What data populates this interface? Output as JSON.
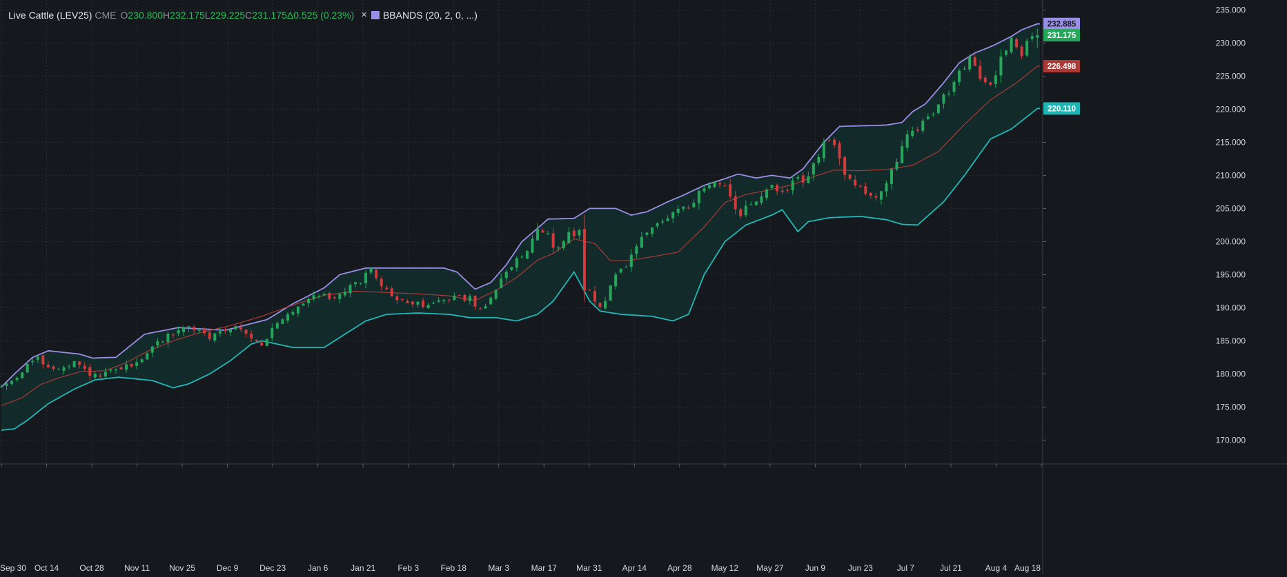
{
  "legend": {
    "symbol": "Live Cattle (LEV25)",
    "exchange": "CME",
    "o_label": "O",
    "o_value": "230.800",
    "h_label": "H",
    "h_value": "232.175",
    "l_label": "L",
    "l_value": "229.225",
    "c_label": "C",
    "c_value": "231.175",
    "change": "Δ0.525 (0.23%)",
    "close_icon": "×",
    "indicator": "BBANDS (20, 2, 0, ...)",
    "indicator_color": "#9b8ee6"
  },
  "colors": {
    "background": "#15181c",
    "up": "#26a65b",
    "down": "#d23b3b",
    "upper_band": "#9b8ee6",
    "middle_band": "#a93a35",
    "lower_band": "#22b8b8",
    "band_fill": "#12302f",
    "grid": "#2a2e34",
    "axis_text": "#d7d9dc"
  },
  "chart_data": {
    "type": "candlestick",
    "title": "Live Cattle (LEV25)",
    "y_ticks": [
      "170.000",
      "175.000",
      "180.000",
      "185.000",
      "190.000",
      "195.000",
      "200.000",
      "205.000",
      "210.000",
      "215.000",
      "220.000",
      "225.000",
      "230.000",
      "235.000"
    ],
    "y_range": [
      166.5,
      236.5
    ],
    "x_ticks": [
      "Sep 30",
      "Oct 14",
      "Oct 28",
      "Nov 11",
      "Nov 25",
      "Dec 9",
      "Dec 23",
      "Jan 6",
      "Jan 21",
      "Feb 3",
      "Feb 18",
      "Mar 3",
      "Mar 17",
      "Mar 31",
      "Apr 14",
      "Apr 28",
      "May 12",
      "May 27",
      "Jun 9",
      "Jun 23",
      "Jul 7",
      "Jul 21",
      "Aug 4",
      "Aug 18"
    ],
    "price_tags": [
      {
        "value": 232.885,
        "label": "232.885",
        "color": "#9b8ee6",
        "text_color": "#15181c"
      },
      {
        "value": 231.175,
        "label": "231.175",
        "color": "#26a65b",
        "text_color": "#ffffff"
      },
      {
        "value": 226.498,
        "label": "226.498",
        "color": "#a93a35",
        "text_color": "#ffffff"
      },
      {
        "value": 220.11,
        "label": "220.110",
        "color": "#1fb4b4",
        "text_color": "#ffffff"
      }
    ],
    "bands": {
      "upper": [
        [
          0,
          178.0
        ],
        [
          5,
          180.0
        ],
        [
          12,
          182.5
        ],
        [
          18,
          183.5
        ],
        [
          30,
          183.0
        ],
        [
          35,
          182.4
        ],
        [
          44,
          182.5
        ],
        [
          55,
          186.0
        ],
        [
          68,
          187.0
        ],
        [
          86,
          186.6
        ],
        [
          102,
          188.2
        ],
        [
          112,
          190.6
        ],
        [
          124,
          193.0
        ],
        [
          130,
          195.0
        ],
        [
          140,
          196.0
        ],
        [
          170,
          196.0
        ],
        [
          175,
          195.4
        ],
        [
          182,
          192.8
        ],
        [
          188,
          193.8
        ],
        [
          194,
          196.5
        ],
        [
          200,
          200.0
        ],
        [
          206,
          202.0
        ],
        [
          210,
          203.4
        ],
        [
          220,
          203.5
        ],
        [
          226,
          205.0
        ],
        [
          236,
          205.0
        ],
        [
          242,
          204.0
        ],
        [
          248,
          204.5
        ],
        [
          256,
          206.0
        ],
        [
          262,
          207.0
        ],
        [
          270,
          208.5
        ],
        [
          278,
          209.5
        ],
        [
          283,
          210.2
        ],
        [
          290,
          209.6
        ],
        [
          296,
          210.0
        ],
        [
          303,
          209.6
        ],
        [
          308,
          211.0
        ],
        [
          316,
          215.0
        ],
        [
          322,
          217.4
        ],
        [
          340,
          217.6
        ],
        [
          346,
          218.0
        ],
        [
          350,
          219.6
        ],
        [
          355,
          220.8
        ],
        [
          362,
          224.0
        ],
        [
          368,
          227.0
        ],
        [
          374,
          228.5
        ],
        [
          381,
          229.6
        ],
        [
          388,
          231.0
        ],
        [
          392,
          232.0
        ],
        [
          398,
          232.9
        ]
      ],
      "middle": [
        [
          0,
          175.2
        ],
        [
          8,
          176.4
        ],
        [
          15,
          178.4
        ],
        [
          22,
          179.4
        ],
        [
          30,
          180.3
        ],
        [
          40,
          180.5
        ],
        [
          48,
          181.7
        ],
        [
          56,
          183.4
        ],
        [
          66,
          185.0
        ],
        [
          76,
          186.2
        ],
        [
          88,
          187.3
        ],
        [
          100,
          188.7
        ],
        [
          112,
          190.4
        ],
        [
          124,
          191.9
        ],
        [
          136,
          192.5
        ],
        [
          148,
          192.3
        ],
        [
          160,
          192.1
        ],
        [
          172,
          191.8
        ],
        [
          182,
          191.1
        ],
        [
          190,
          192.6
        ],
        [
          198,
          194.6
        ],
        [
          206,
          197.2
        ],
        [
          212,
          198.2
        ],
        [
          220,
          200.4
        ],
        [
          228,
          199.7
        ],
        [
          234,
          197.1
        ],
        [
          240,
          197.1
        ],
        [
          250,
          197.7
        ],
        [
          260,
          198.4
        ],
        [
          270,
          202.2
        ],
        [
          278,
          205.9
        ],
        [
          286,
          207.1
        ],
        [
          296,
          207.9
        ],
        [
          304,
          208.6
        ],
        [
          312,
          209.8
        ],
        [
          320,
          210.8
        ],
        [
          330,
          210.7
        ],
        [
          340,
          210.9
        ],
        [
          350,
          211.5
        ],
        [
          360,
          213.6
        ],
        [
          370,
          217.7
        ],
        [
          380,
          221.4
        ],
        [
          390,
          224.0
        ],
        [
          398,
          226.5
        ]
      ],
      "lower": [
        [
          0,
          171.5
        ],
        [
          5,
          171.7
        ],
        [
          10,
          173.0
        ],
        [
          18,
          175.5
        ],
        [
          28,
          177.7
        ],
        [
          36,
          179.1
        ],
        [
          45,
          179.5
        ],
        [
          58,
          179.0
        ],
        [
          66,
          177.9
        ],
        [
          72,
          178.5
        ],
        [
          80,
          180.0
        ],
        [
          88,
          182.0
        ],
        [
          96,
          184.5
        ],
        [
          100,
          185.0
        ],
        [
          112,
          184.0
        ],
        [
          124,
          184.0
        ],
        [
          132,
          186.0
        ],
        [
          140,
          188.0
        ],
        [
          148,
          189.0
        ],
        [
          160,
          189.2
        ],
        [
          172,
          189.0
        ],
        [
          180,
          188.5
        ],
        [
          190,
          188.5
        ],
        [
          198,
          188.0
        ],
        [
          206,
          189.0
        ],
        [
          212,
          191.0
        ],
        [
          220,
          195.4
        ],
        [
          226,
          191.0
        ],
        [
          230,
          189.5
        ],
        [
          238,
          189.0
        ],
        [
          250,
          188.7
        ],
        [
          258,
          188.0
        ],
        [
          264,
          189.0
        ],
        [
          270,
          195.0
        ],
        [
          278,
          200.0
        ],
        [
          286,
          202.5
        ],
        [
          296,
          204.0
        ],
        [
          300,
          204.8
        ],
        [
          306,
          201.5
        ],
        [
          310,
          203.0
        ],
        [
          318,
          203.6
        ],
        [
          330,
          203.8
        ],
        [
          340,
          203.3
        ],
        [
          346,
          202.6
        ],
        [
          352,
          202.5
        ],
        [
          362,
          206.0
        ],
        [
          370,
          210.0
        ],
        [
          380,
          215.5
        ],
        [
          388,
          217.0
        ],
        [
          398,
          220.1
        ]
      ]
    },
    "anchors": [
      [
        0,
        177.8
      ],
      [
        5,
        178.6
      ],
      [
        10,
        180.5
      ],
      [
        13,
        181.8
      ],
      [
        16,
        182.2
      ],
      [
        20,
        181.2
      ],
      [
        24,
        180.6
      ],
      [
        28,
        180.9
      ],
      [
        30,
        181.6
      ],
      [
        34,
        180.5
      ],
      [
        38,
        179.6
      ],
      [
        42,
        179.9
      ],
      [
        46,
        180.6
      ],
      [
        50,
        181.1
      ],
      [
        54,
        181.6
      ],
      [
        58,
        183.3
      ],
      [
        62,
        184.6
      ],
      [
        66,
        185.8
      ],
      [
        70,
        186.6
      ],
      [
        74,
        187.2
      ],
      [
        78,
        186.4
      ],
      [
        82,
        185.4
      ],
      [
        86,
        186.4
      ],
      [
        90,
        187.2
      ],
      [
        94,
        186.7
      ],
      [
        96,
        186.0
      ],
      [
        100,
        184.7
      ],
      [
        102,
        184.6
      ],
      [
        104,
        185.7
      ],
      [
        106,
        186.5
      ],
      [
        108,
        187.5
      ],
      [
        112,
        188.8
      ],
      [
        116,
        190.3
      ],
      [
        120,
        191.5
      ],
      [
        124,
        192.1
      ],
      [
        128,
        191.5
      ],
      [
        132,
        192.1
      ],
      [
        136,
        193.0
      ],
      [
        140,
        194.2
      ],
      [
        142,
        195.4
      ],
      [
        144,
        195.6
      ],
      [
        146,
        194.1
      ],
      [
        148,
        193.5
      ],
      [
        150,
        192.5
      ],
      [
        154,
        191.2
      ],
      [
        158,
        190.7
      ],
      [
        162,
        190.5
      ],
      [
        166,
        190.4
      ],
      [
        170,
        190.9
      ],
      [
        172,
        190.9
      ],
      [
        174,
        191.4
      ],
      [
        176,
        192.1
      ],
      [
        178,
        192.3
      ],
      [
        180,
        191.5
      ],
      [
        182,
        191.7
      ],
      [
        184,
        189.8
      ],
      [
        186,
        189.7
      ],
      [
        188,
        190.5
      ],
      [
        190,
        191.8
      ],
      [
        192,
        193.1
      ],
      [
        194,
        194.2
      ],
      [
        196,
        195.0
      ],
      [
        198,
        196.5
      ],
      [
        200,
        197.1
      ],
      [
        202,
        197.8
      ],
      [
        204,
        199.0
      ],
      [
        206,
        200.5
      ],
      [
        208,
        202.1
      ],
      [
        210,
        201.7
      ],
      [
        212,
        201.0
      ],
      [
        214,
        199.3
      ],
      [
        216,
        199.0
      ],
      [
        218,
        200.4
      ],
      [
        220,
        201.2
      ],
      [
        222,
        200.6
      ],
      [
        224,
        201.8
      ],
      [
        226,
        193.0
      ],
      [
        228,
        192.8
      ],
      [
        230,
        191.0
      ],
      [
        232,
        189.8
      ],
      [
        234,
        191.0
      ],
      [
        236,
        193.3
      ],
      [
        238,
        194.8
      ],
      [
        240,
        195.5
      ],
      [
        242,
        196.2
      ],
      [
        244,
        197.7
      ],
      [
        246,
        199.4
      ],
      [
        248,
        200.3
      ],
      [
        250,
        201.0
      ],
      [
        252,
        202.1
      ],
      [
        254,
        202.6
      ],
      [
        256,
        203.0
      ],
      [
        258,
        203.5
      ],
      [
        260,
        204.5
      ],
      [
        262,
        205.2
      ],
      [
        264,
        205.4
      ],
      [
        266,
        205.2
      ],
      [
        268,
        206.0
      ],
      [
        270,
        207.3
      ],
      [
        272,
        208.0
      ],
      [
        274,
        208.6
      ],
      [
        276,
        209.0
      ],
      [
        278,
        209.0
      ],
      [
        280,
        208.5
      ],
      [
        282,
        206.4
      ],
      [
        284,
        204.5
      ],
      [
        286,
        203.8
      ],
      [
        288,
        205.3
      ],
      [
        290,
        205.7
      ],
      [
        292,
        206.1
      ],
      [
        294,
        206.8
      ],
      [
        296,
        207.5
      ],
      [
        298,
        208.5
      ],
      [
        300,
        207.8
      ],
      [
        302,
        207.3
      ],
      [
        304,
        207.8
      ],
      [
        306,
        209.0
      ],
      [
        308,
        209.6
      ],
      [
        310,
        209.0
      ],
      [
        312,
        210.2
      ],
      [
        314,
        211.5
      ],
      [
        316,
        212.7
      ],
      [
        318,
        214.7
      ],
      [
        320,
        215.2
      ],
      [
        322,
        214.4
      ],
      [
        324,
        212.5
      ],
      [
        326,
        210.5
      ],
      [
        328,
        209.5
      ],
      [
        330,
        208.3
      ],
      [
        332,
        208.0
      ],
      [
        334,
        207.3
      ],
      [
        336,
        207.0
      ],
      [
        338,
        206.7
      ],
      [
        340,
        207.9
      ],
      [
        342,
        208.9
      ],
      [
        344,
        210.5
      ],
      [
        346,
        211.8
      ],
      [
        348,
        214.1
      ],
      [
        350,
        216.3
      ],
      [
        352,
        216.9
      ],
      [
        354,
        216.8
      ],
      [
        356,
        218.1
      ],
      [
        358,
        219.2
      ],
      [
        360,
        219.6
      ],
      [
        362,
        220.8
      ],
      [
        364,
        221.8
      ],
      [
        366,
        222.3
      ],
      [
        368,
        224.4
      ],
      [
        370,
        225.6
      ],
      [
        372,
        226.5
      ],
      [
        374,
        228.3
      ],
      [
        376,
        226.5
      ],
      [
        378,
        224.2
      ],
      [
        380,
        224.0
      ],
      [
        382,
        223.6
      ],
      [
        384,
        225.4
      ],
      [
        386,
        228.1
      ],
      [
        388,
        229.1
      ],
      [
        390,
        230.9
      ],
      [
        392,
        229.5
      ],
      [
        394,
        228.3
      ],
      [
        396,
        230.2
      ],
      [
        398,
        231.2
      ]
    ],
    "last_candle": {
      "open": 230.8,
      "high": 232.175,
      "low": 229.225,
      "close": 231.175
    }
  }
}
